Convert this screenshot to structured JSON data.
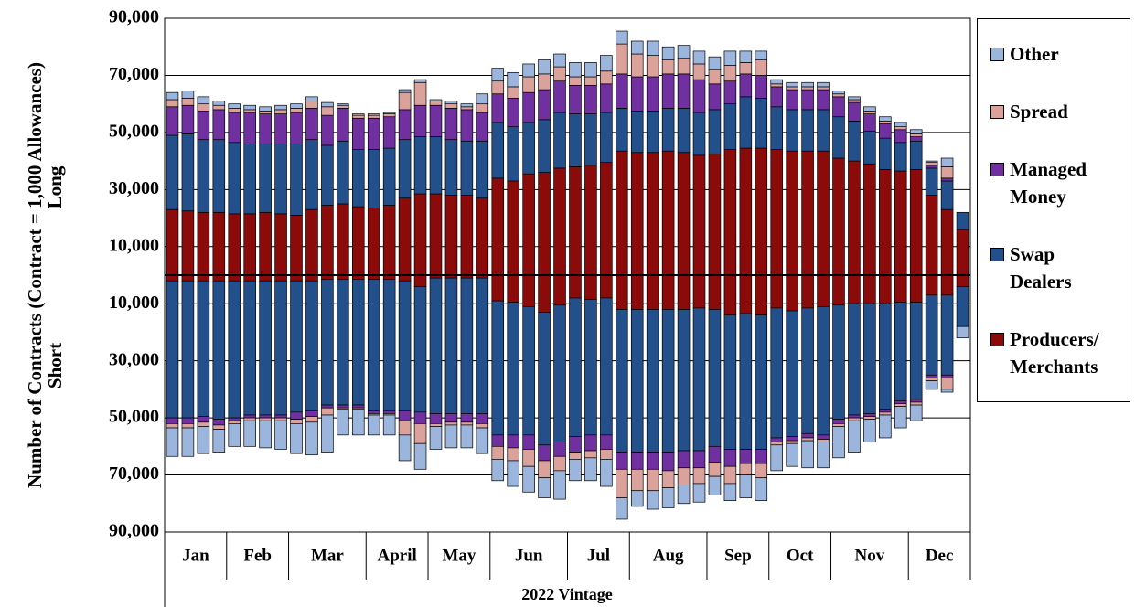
{
  "chart_data": {
    "type": "diverging-stacked-bar",
    "y_label": "Number of Contracts (Contract = 1,000 Allowances)",
    "long_label": "Long",
    "short_label": "Short",
    "x_label": "2022 Vintage",
    "months": [
      {
        "label": "Jan",
        "span": 4
      },
      {
        "label": "Feb",
        "span": 4
      },
      {
        "label": "Mar",
        "span": 5
      },
      {
        "label": "April",
        "span": 4
      },
      {
        "label": "May",
        "span": 4
      },
      {
        "label": "Jun",
        "span": 5
      },
      {
        "label": "Jul",
        "span": 4
      },
      {
        "label": "Aug",
        "span": 5
      },
      {
        "label": "Sep",
        "span": 4
      },
      {
        "label": "Oct",
        "span": 4
      },
      {
        "label": "Nov",
        "span": 5
      },
      {
        "label": "Dec",
        "span": 4
      }
    ],
    "ylim": [
      -90000,
      90000
    ],
    "yticks": [
      {
        "value": 90000,
        "label": "90,000"
      },
      {
        "value": 70000,
        "label": "70,000"
      },
      {
        "value": 50000,
        "label": "50,000"
      },
      {
        "value": 30000,
        "label": "30,000"
      },
      {
        "value": 10000,
        "label": "10,000"
      },
      {
        "value": -10000,
        "label": "10,000"
      },
      {
        "value": -30000,
        "label": "30,000"
      },
      {
        "value": -50000,
        "label": "50,000"
      },
      {
        "value": -70000,
        "label": "70,000"
      },
      {
        "value": -90000,
        "label": "90,000"
      }
    ],
    "grid": true,
    "legend": "right",
    "series": [
      {
        "name": "Producers/ Merchants",
        "color": "#8b0a0a",
        "long": [
          23000,
          22500,
          22000,
          22000,
          21500,
          21500,
          22000,
          21500,
          21000,
          23000,
          24500,
          25000,
          24000,
          23500,
          24500,
          27000,
          28500,
          28500,
          28000,
          28000,
          27000,
          34000,
          33000,
          35500,
          36000,
          37500,
          38000,
          38500,
          39500,
          43500,
          43000,
          43000,
          43500,
          43000,
          42000,
          42500,
          44000,
          44500,
          44500,
          44000,
          43500,
          43500,
          43500,
          41000,
          40000,
          39000,
          37000,
          36500,
          37000,
          28000,
          23000,
          16000
        ],
        "short": [
          -2000,
          -2000,
          -2000,
          -2000,
          -2000,
          -2000,
          -2000,
          -2000,
          -2000,
          -2000,
          -1500,
          -1500,
          -1500,
          -1500,
          -1500,
          -2000,
          -4000,
          -1000,
          -1000,
          -1000,
          -1000,
          -9000,
          -9500,
          -11000,
          -13000,
          -10500,
          -8000,
          -8500,
          -8000,
          -12000,
          -12000,
          -12000,
          -12000,
          -12000,
          -11500,
          -12000,
          -14000,
          -13500,
          -14000,
          -11500,
          -12500,
          -11500,
          -11000,
          -10500,
          -10000,
          -10000,
          -10000,
          -9500,
          -9500,
          -7000,
          -7000,
          -4000
        ]
      },
      {
        "name": "Swap Dealers",
        "color": "#23508a",
        "long": [
          26000,
          27000,
          25500,
          25500,
          25000,
          24500,
          24000,
          24500,
          25000,
          24500,
          21000,
          22000,
          20000,
          20500,
          20000,
          20500,
          20000,
          20000,
          19500,
          19000,
          20000,
          19500,
          19000,
          18000,
          18500,
          19500,
          18500,
          18000,
          17500,
          15000,
          14500,
          14500,
          15000,
          15500,
          15000,
          15500,
          16000,
          18000,
          17500,
          15000,
          14500,
          14500,
          14500,
          14500,
          14000,
          11500,
          11000,
          10000,
          10000,
          9500,
          10000,
          6000
        ],
        "short": [
          -48000,
          -48000,
          -47500,
          -48500,
          -48000,
          -47000,
          -47000,
          -47000,
          -46000,
          -45500,
          -44000,
          -44000,
          -44000,
          -46000,
          -46000,
          -45500,
          -44000,
          -47500,
          -47500,
          -47500,
          -47500,
          -47000,
          -46500,
          -45000,
          -46500,
          -48000,
          -48500,
          -47500,
          -48000,
          -50000,
          -50000,
          -50000,
          -50000,
          -49500,
          -50000,
          -48000,
          -47000,
          -47500,
          -47000,
          -45500,
          -44000,
          -44000,
          -45000,
          -40000,
          -39000,
          -38500,
          -37000,
          -34500,
          -34000,
          -28000,
          -28000,
          -14000
        ]
      },
      {
        "name": "Managed Money",
        "color": "#7030a0",
        "long": [
          10000,
          10000,
          10000,
          10500,
          10500,
          11000,
          10500,
          10500,
          11000,
          11000,
          10500,
          11500,
          11000,
          11000,
          11000,
          10500,
          11000,
          11000,
          11000,
          11000,
          10000,
          10000,
          10000,
          10500,
          10500,
          11000,
          10000,
          10000,
          10000,
          12000,
          12000,
          12000,
          12000,
          12000,
          11500,
          9000,
          8000,
          8000,
          8000,
          7000,
          7000,
          7000,
          7000,
          7000,
          6500,
          6000,
          5000,
          4500,
          1500,
          1000,
          1000,
          0
        ],
        "short": [
          -2000,
          -2000,
          -2000,
          -2000,
          -1000,
          -1000,
          -1000,
          -1000,
          -2500,
          -2000,
          -1000,
          -1000,
          -1000,
          -1000,
          -1000,
          -3500,
          -4000,
          -3500,
          -3000,
          -3000,
          -3500,
          -4000,
          -4500,
          -5000,
          -5500,
          -5000,
          -5500,
          -5500,
          -5000,
          -6000,
          -6000,
          -6000,
          -6500,
          -6000,
          -6000,
          -5500,
          -6000,
          -5000,
          -5000,
          -1500,
          -1500,
          -1500,
          -1500,
          -1500,
          -1000,
          -1000,
          -1000,
          -1000,
          -1000,
          -1000,
          -1000,
          0
        ]
      },
      {
        "name": "Spread",
        "color": "#dba29c",
        "long": [
          2500,
          2500,
          2500,
          1500,
          1500,
          1000,
          1000,
          1500,
          1500,
          2500,
          3000,
          1000,
          1000,
          1000,
          1000,
          6000,
          8000,
          1500,
          1500,
          1000,
          3000,
          4500,
          4000,
          5500,
          5500,
          5000,
          3000,
          3000,
          4500,
          10500,
          8000,
          7500,
          5000,
          5500,
          5500,
          5000,
          5500,
          4000,
          5500,
          1000,
          1000,
          1000,
          1000,
          1000,
          1000,
          1000,
          1000,
          1000,
          1000,
          1000,
          4000,
          0
        ],
        "short": [
          -1500,
          -1500,
          -1500,
          -1500,
          -1000,
          -1000,
          -1000,
          -1000,
          -1500,
          -2000,
          -2500,
          -500,
          -500,
          -500,
          -500,
          -5000,
          -7000,
          -1000,
          -1000,
          -1000,
          -1500,
          -4500,
          -4500,
          -6000,
          -6000,
          -5000,
          -2500,
          -2500,
          -3500,
          -10000,
          -7500,
          -7500,
          -6000,
          -6000,
          -5500,
          -5000,
          -6000,
          -4000,
          -5000,
          -1000,
          -1000,
          -1000,
          -1000,
          -1000,
          -1000,
          -1000,
          -1000,
          -1000,
          -1000,
          -1000,
          -4000,
          0
        ]
      },
      {
        "name": "Other",
        "color": "#9bb5dc",
        "long": [
          2500,
          2500,
          2500,
          1500,
          1500,
          1500,
          1500,
          1500,
          1500,
          1500,
          1500,
          500,
          500,
          500,
          500,
          1000,
          1000,
          500,
          1000,
          1000,
          3500,
          4500,
          5000,
          4500,
          5000,
          4500,
          5000,
          5000,
          5500,
          4500,
          4500,
          5000,
          4500,
          4500,
          4500,
          4500,
          5000,
          4000,
          3000,
          1500,
          1500,
          1500,
          1500,
          1000,
          1000,
          1500,
          1500,
          1500,
          1500,
          500,
          3000,
          0
        ],
        "short": [
          -10000,
          -10000,
          -9500,
          -8000,
          -8000,
          -9000,
          -9500,
          -10000,
          -10500,
          -11500,
          -13000,
          -9000,
          -9000,
          -7000,
          -7000,
          -9000,
          -9000,
          -8000,
          -8000,
          -8000,
          -9000,
          -7500,
          -9000,
          -9000,
          -7000,
          -10000,
          -7500,
          -8000,
          -9500,
          -7500,
          -5500,
          -6500,
          -7000,
          -6500,
          -6500,
          -6500,
          -6000,
          -8000,
          -8000,
          -9000,
          -8000,
          -9500,
          -9000,
          -11000,
          -11000,
          -8000,
          -8000,
          -7500,
          -5500,
          -3000,
          -1000,
          -4000
        ]
      }
    ]
  }
}
